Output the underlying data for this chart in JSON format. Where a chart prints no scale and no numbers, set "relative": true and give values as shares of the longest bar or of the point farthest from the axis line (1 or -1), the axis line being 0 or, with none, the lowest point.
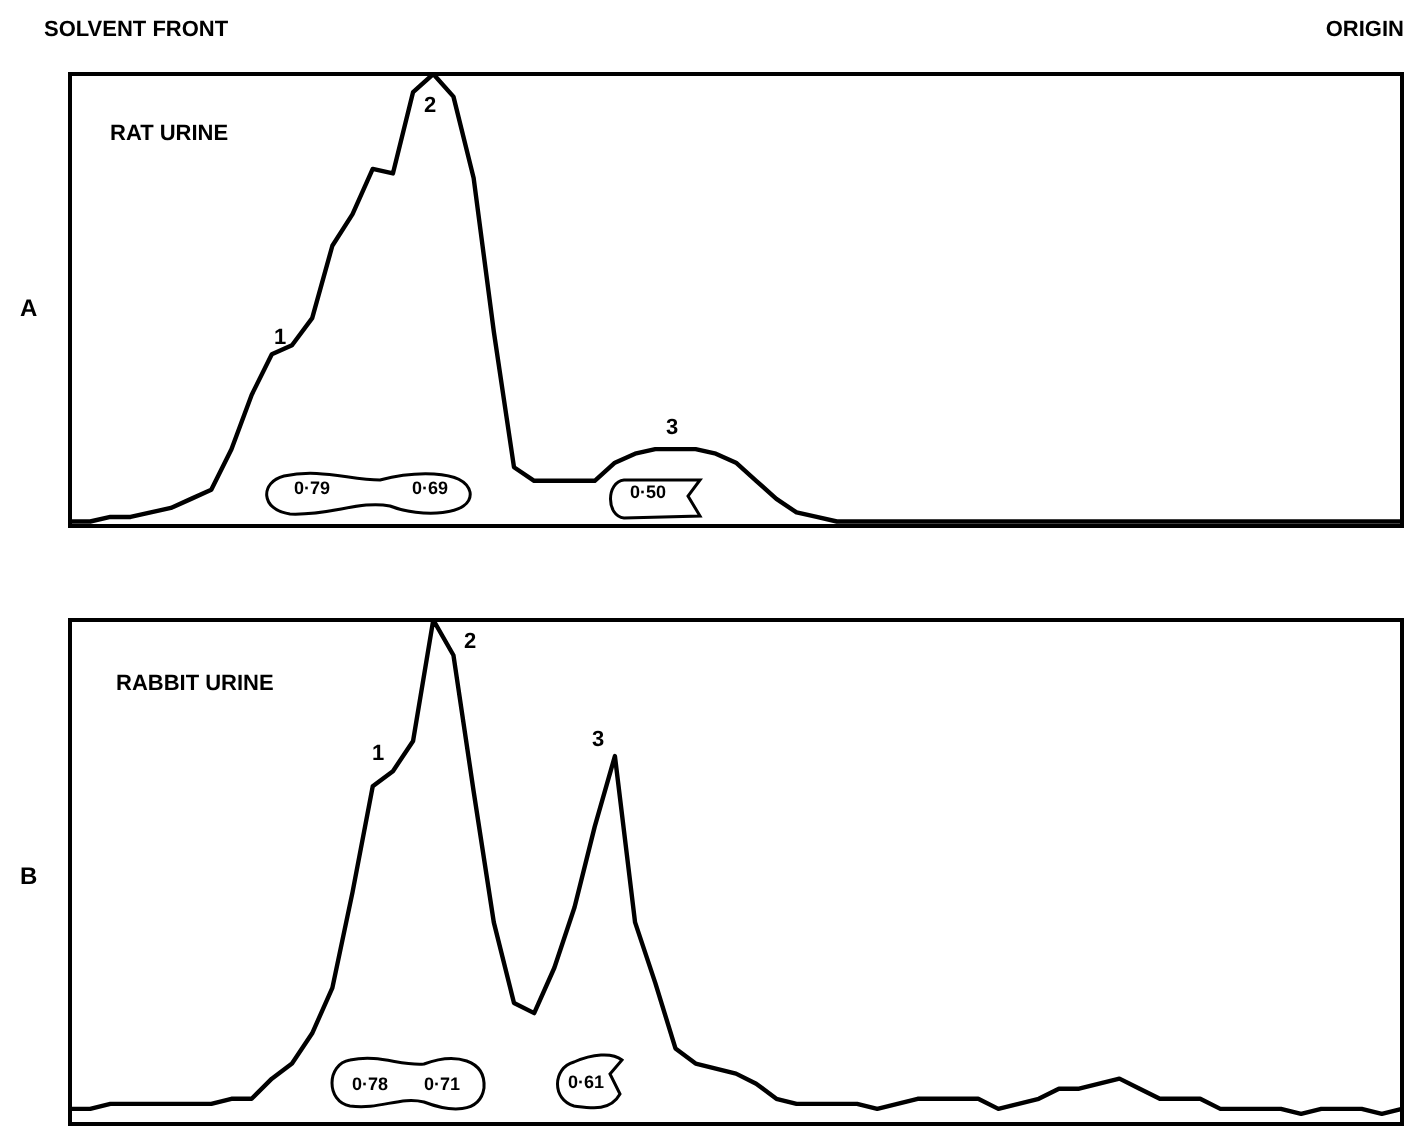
{
  "chart_data": [
    {
      "type": "line",
      "relative": true,
      "color": "#000000",
      "legend": false,
      "categories": [
        null,
        null,
        null,
        null,
        null,
        null,
        null,
        null,
        null,
        null,
        null,
        null,
        null,
        null,
        null,
        null,
        null,
        null,
        null,
        null,
        null,
        null,
        null,
        null,
        null,
        null,
        null,
        null,
        null,
        null,
        null,
        null,
        null,
        null,
        null,
        null,
        null,
        null,
        null,
        null,
        null,
        null,
        null,
        null,
        null,
        null,
        null,
        null,
        null,
        null,
        null,
        null,
        null,
        null,
        null,
        null,
        null,
        null,
        null,
        null,
        null,
        null,
        null,
        null,
        null,
        null,
        null
      ],
      "values": [
        0.01,
        0.01,
        0.02,
        0.02,
        0.03,
        0.04,
        0.06,
        0.08,
        0.17,
        0.29,
        0.38,
        0.4,
        0.46,
        0.62,
        0.69,
        0.79,
        0.78,
        0.96,
        1.0,
        0.95,
        0.77,
        0.43,
        0.13,
        0.1,
        0.1,
        0.1,
        0.1,
        0.14,
        0.16,
        0.17,
        0.17,
        0.17,
        0.16,
        0.14,
        0.1,
        0.06,
        0.03,
        0.02,
        0.01,
        0.01,
        0.01,
        0.01,
        0.01,
        0.01,
        0.01,
        0.01,
        0.01,
        0.01,
        0.01,
        0.01,
        0.01,
        0.01,
        0.01,
        0.01,
        0.01,
        0.01,
        0.01,
        0.01,
        0.01,
        0.01,
        0.01,
        0.01,
        0.01,
        0.01,
        0.01,
        0.01,
        0.01
      ],
      "annotations": [
        "SOLVENT FRONT",
        "ORIGIN",
        "A",
        "RAT URINE",
        "1",
        "2",
        "3",
        "0·79",
        "0·69",
        "0·50"
      ]
    },
    {
      "type": "line",
      "relative": true,
      "color": "#000000",
      "legend": false,
      "categories": [
        null,
        null,
        null,
        null,
        null,
        null,
        null,
        null,
        null,
        null,
        null,
        null,
        null,
        null,
        null,
        null,
        null,
        null,
        null,
        null,
        null,
        null,
        null,
        null,
        null,
        null,
        null,
        null,
        null,
        null,
        null,
        null,
        null,
        null,
        null,
        null,
        null,
        null,
        null,
        null,
        null,
        null,
        null,
        null,
        null,
        null,
        null,
        null,
        null,
        null,
        null,
        null,
        null,
        null,
        null,
        null,
        null,
        null,
        null,
        null,
        null,
        null,
        null,
        null,
        null,
        null,
        null
      ],
      "values": [
        0.03,
        0.03,
        0.04,
        0.04,
        0.04,
        0.04,
        0.04,
        0.04,
        0.05,
        0.05,
        0.09,
        0.12,
        0.18,
        0.27,
        0.46,
        0.67,
        0.7,
        0.76,
        1.0,
        0.93,
        0.66,
        0.4,
        0.24,
        0.22,
        0.31,
        0.43,
        0.59,
        0.73,
        0.4,
        0.28,
        0.15,
        0.12,
        0.11,
        0.1,
        0.08,
        0.05,
        0.04,
        0.04,
        0.04,
        0.04,
        0.03,
        0.04,
        0.05,
        0.05,
        0.05,
        0.05,
        0.03,
        0.04,
        0.05,
        0.07,
        0.07,
        0.08,
        0.09,
        0.07,
        0.05,
        0.05,
        0.05,
        0.03,
        0.03,
        0.03,
        0.03,
        0.02,
        0.03,
        0.03,
        0.03,
        0.02,
        0.03
      ],
      "annotations": [
        "B",
        "RABBIT URINE",
        "1",
        "2",
        "3",
        "0·78",
        "0·71",
        "0·61"
      ]
    }
  ]
}
